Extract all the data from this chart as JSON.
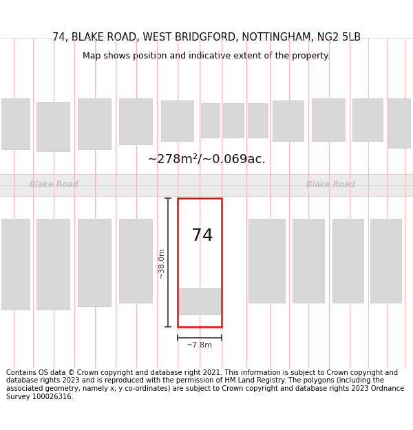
{
  "title_line1": "74, BLAKE ROAD, WEST BRIDGFORD, NOTTINGHAM, NG2 5LB",
  "title_line2": "Map shows position and indicative extent of the property.",
  "area_label": "~278m²/~0.069ac.",
  "road_name": "Blake Road",
  "property_number": "74",
  "dim_width": "~7.8m",
  "dim_height": "~38.0m",
  "footer_text": "Contains OS data © Crown copyright and database right 2021. This information is subject to Crown copyright and database rights 2023 and is reproduced with the permission of HM Land Registry. The polygons (including the associated geometry, namely x, y co-ordinates) are subject to Crown copyright and database rights 2023 Ordnance Survey 100026316.",
  "bg_color": "#ffffff",
  "road_fill": "#ebebeb",
  "plot_line_color": "#ff0000",
  "grid_line_color": "#f5b8b8",
  "building_fill": "#d8d8d8",
  "building_edge": "#c8c8c8",
  "road_label_color": "#b0b0b0",
  "dim_color": "#333333",
  "title_fontsize": 10.5,
  "subtitle_fontsize": 9,
  "footer_fontsize": 7.2,
  "road_label_fontsize": 9,
  "area_fontsize": 13,
  "prop_num_fontsize": 18,
  "dim_fontsize": 8
}
